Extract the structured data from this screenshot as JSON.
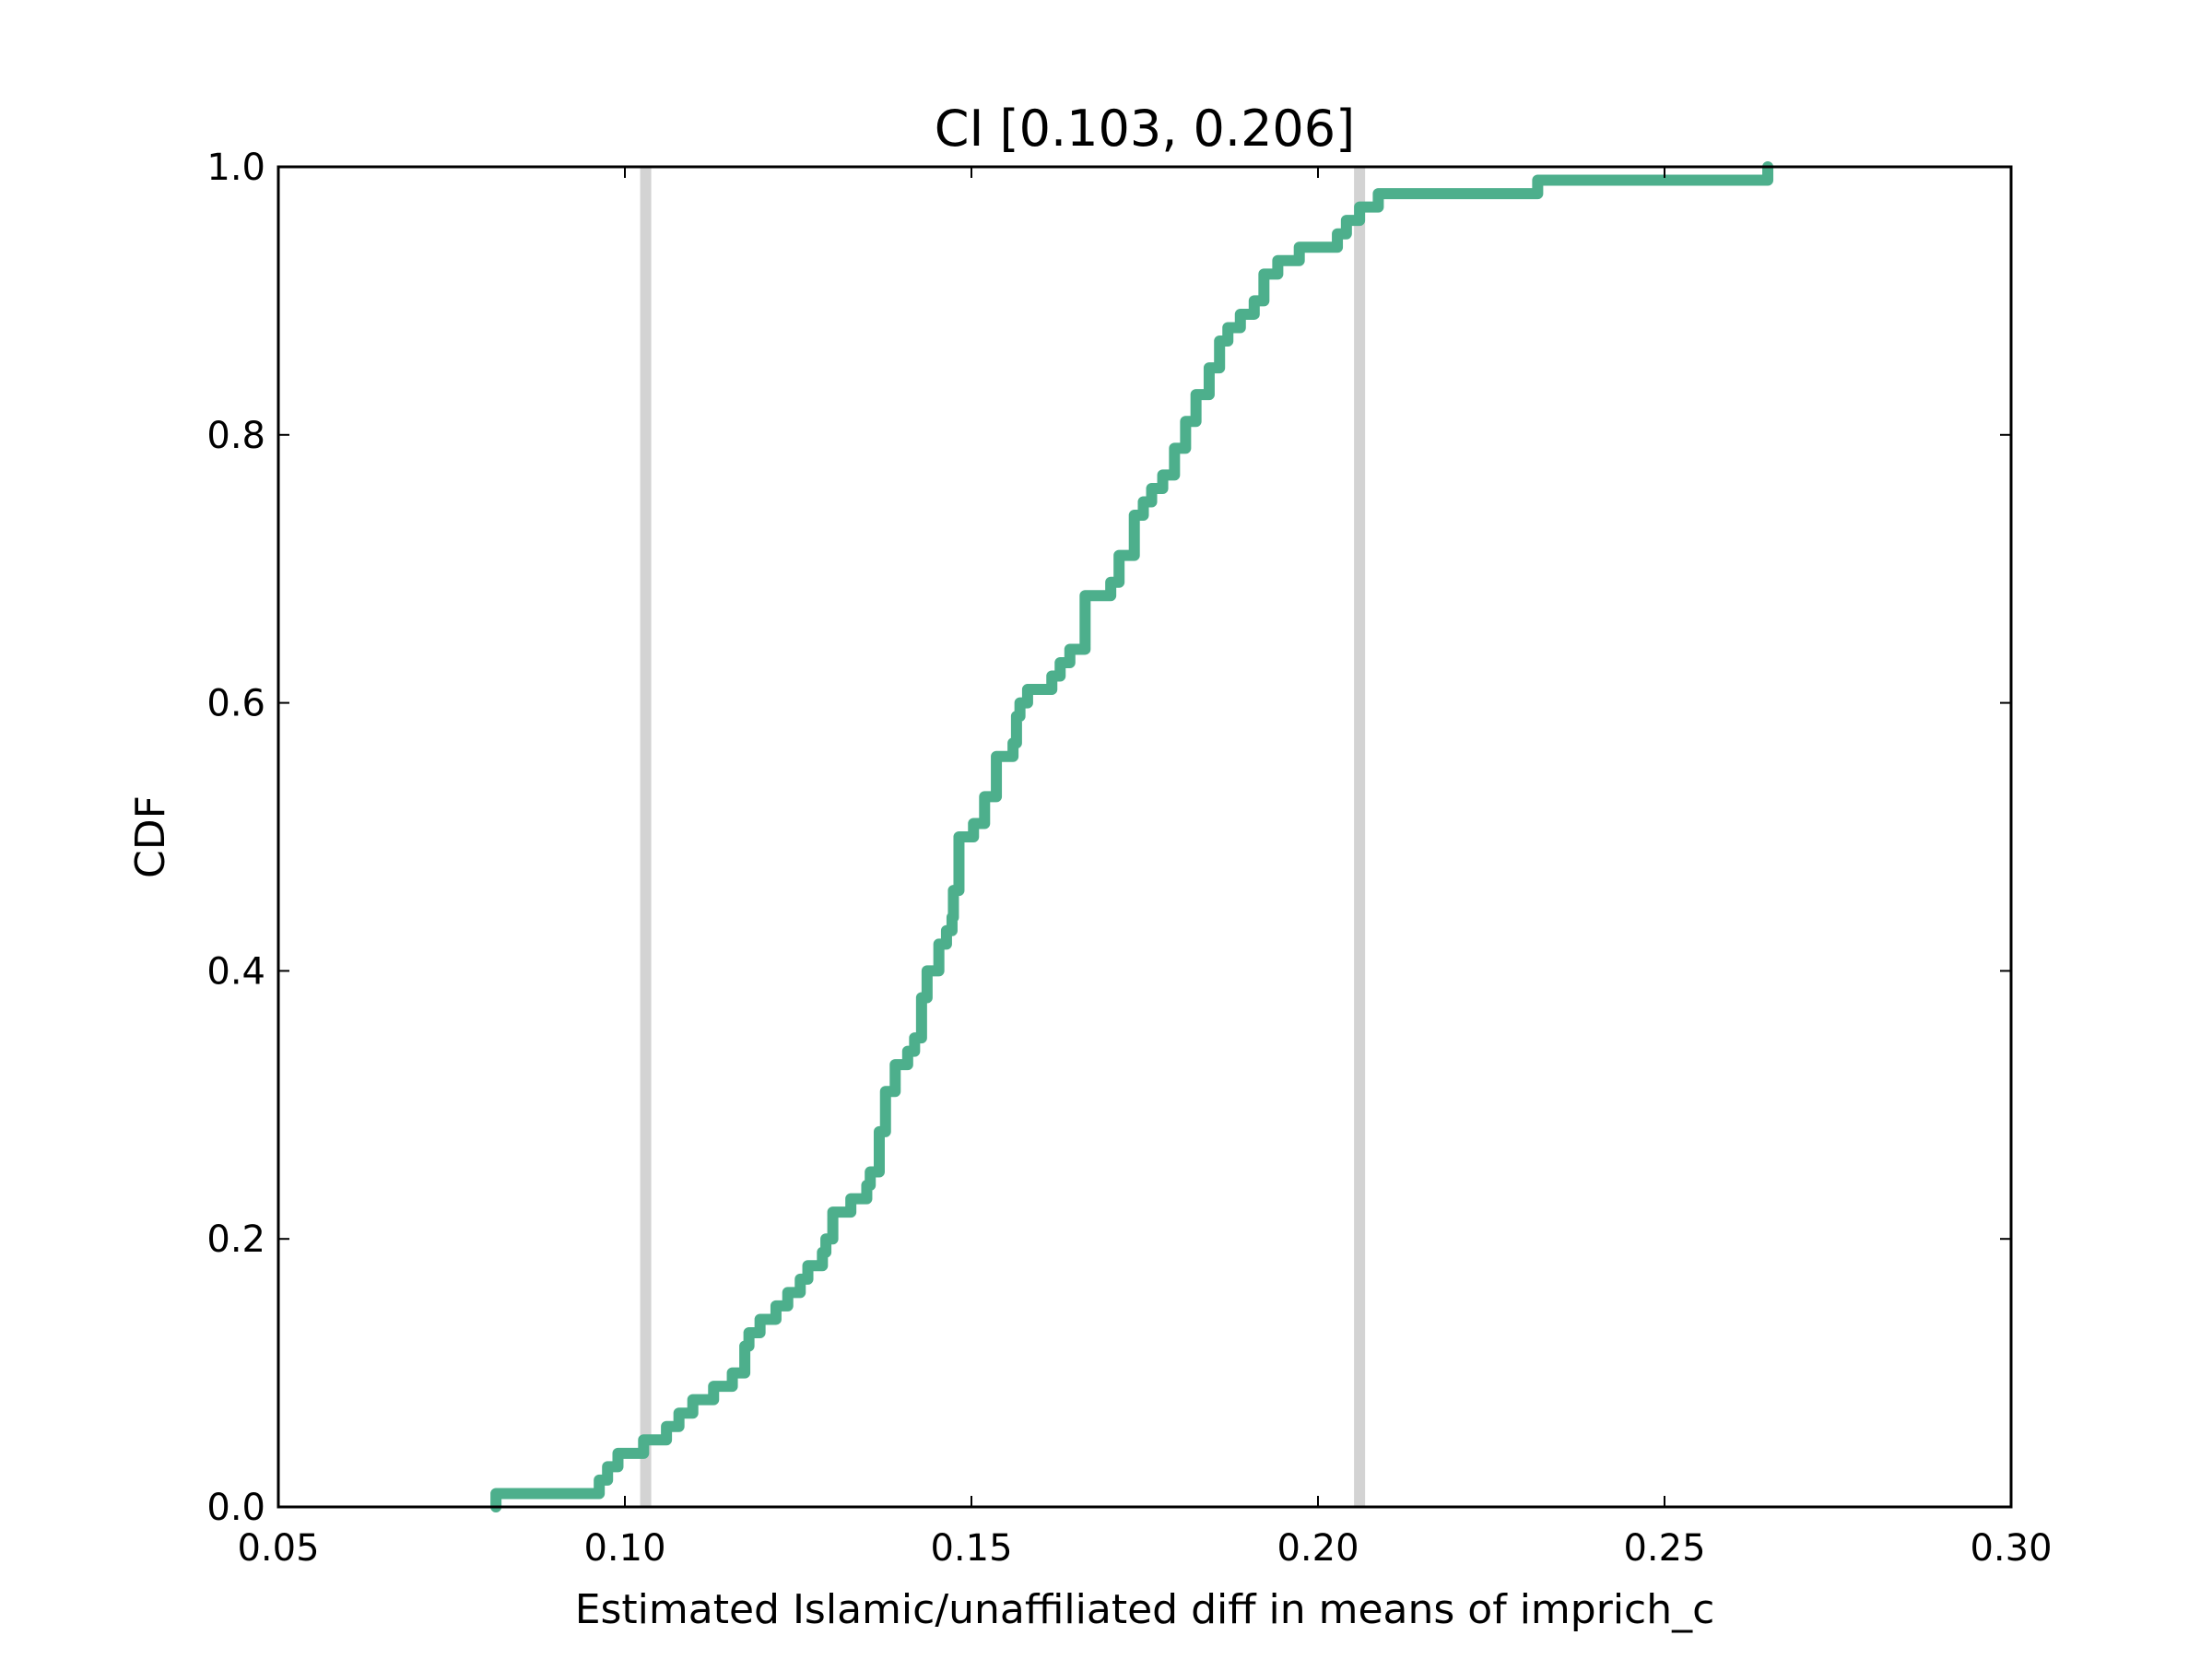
{
  "chart_data": {
    "type": "line",
    "title": "CI [0.103, 0.206]",
    "xlabel": "Estimated Islamic/unaffiliated diff in means of imprich_c",
    "ylabel": "CDF",
    "xlim": [
      0.05,
      0.3
    ],
    "ylim": [
      0.0,
      1.0
    ],
    "grid": false,
    "legend": "none",
    "x_ticks": [
      "0.05",
      "0.10",
      "0.15",
      "0.20",
      "0.25",
      "0.30"
    ],
    "y_ticks": [
      "0.0",
      "0.2",
      "0.4",
      "0.6",
      "0.8",
      "1.0"
    ],
    "colors": {
      "series": "#4daf8c",
      "ci_lines": "#d3d3d3"
    },
    "ci_lines": [
      0.103,
      0.206
    ],
    "series": [
      {
        "x": [
          0.0814,
          0.0963,
          0.0975,
          0.099,
          0.1027,
          0.106,
          0.1078,
          0.1098,
          0.1128,
          0.1155,
          0.1173,
          0.1179,
          0.1195,
          0.1218,
          0.1235,
          0.1253,
          0.1264,
          0.1285,
          0.129,
          0.13,
          0.1326,
          0.1349,
          0.1354,
          0.1367,
          0.1376,
          0.139,
          0.1408,
          0.1418,
          0.1428,
          0.1436,
          0.1453,
          0.1464,
          0.1472,
          0.1474,
          0.1482,
          0.1503,
          0.1519,
          0.1536,
          0.156,
          0.1565,
          0.157,
          0.1581,
          0.1616,
          0.1628,
          0.1642,
          0.1664,
          0.1701,
          0.1713,
          0.1735,
          0.1748,
          0.176,
          0.1776,
          0.1793,
          0.1809,
          0.1824,
          0.1843,
          0.1858,
          0.187,
          0.1888,
          0.1908,
          0.1922,
          0.1942,
          0.1973,
          0.2028,
          0.2041,
          0.206,
          0.2087,
          0.2139,
          0.2317,
          0.2649
        ],
        "y": [
          0.01,
          0.02,
          0.03,
          0.04,
          0.05,
          0.06,
          0.07,
          0.08,
          0.09,
          0.1,
          0.12,
          0.13,
          0.14,
          0.15,
          0.16,
          0.17,
          0.18,
          0.19,
          0.2,
          0.22,
          0.23,
          0.24,
          0.25,
          0.28,
          0.31,
          0.33,
          0.34,
          0.35,
          0.38,
          0.4,
          0.42,
          0.43,
          0.44,
          0.46,
          0.5,
          0.51,
          0.53,
          0.56,
          0.57,
          0.59,
          0.6,
          0.61,
          0.62,
          0.63,
          0.64,
          0.68,
          0.69,
          0.71,
          0.74,
          0.75,
          0.76,
          0.77,
          0.79,
          0.81,
          0.83,
          0.85,
          0.87,
          0.88,
          0.89,
          0.9,
          0.92,
          0.93,
          0.94,
          0.95,
          0.96,
          0.97,
          0.98,
          0.98,
          0.99,
          1.0
        ]
      }
    ]
  }
}
